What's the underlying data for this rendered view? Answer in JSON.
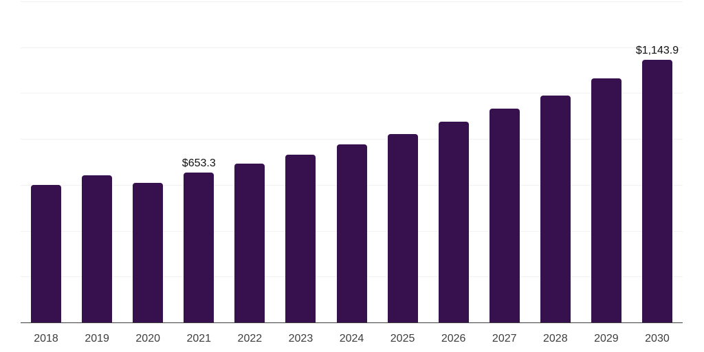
{
  "chart_data": {
    "type": "bar",
    "title": "",
    "xlabel": "",
    "ylabel": "",
    "categories": [
      "2018",
      "2019",
      "2020",
      "2021",
      "2022",
      "2023",
      "2024",
      "2025",
      "2026",
      "2027",
      "2028",
      "2029",
      "2030"
    ],
    "values": [
      600.9,
      642.6,
      608.6,
      653.3,
      692.0,
      731.9,
      776.6,
      822.2,
      875.8,
      931.4,
      989.9,
      1064.4,
      1143.9
    ],
    "data_labels": {
      "3": "$653.3",
      "12": "$1,143.9"
    },
    "ylim": [
      0,
      1400
    ],
    "gridline_step": 200,
    "grid": "horizontal-only",
    "legend": "none",
    "y_axis_tick_labels": "none",
    "colors": {
      "bar": "#36114E",
      "gridline": "#F2F2F2",
      "axis_line": "#3D3D3D",
      "tick_label": "#3D3D3D",
      "data_label": "#0F0F0F",
      "background": "#FFFFFF"
    }
  }
}
